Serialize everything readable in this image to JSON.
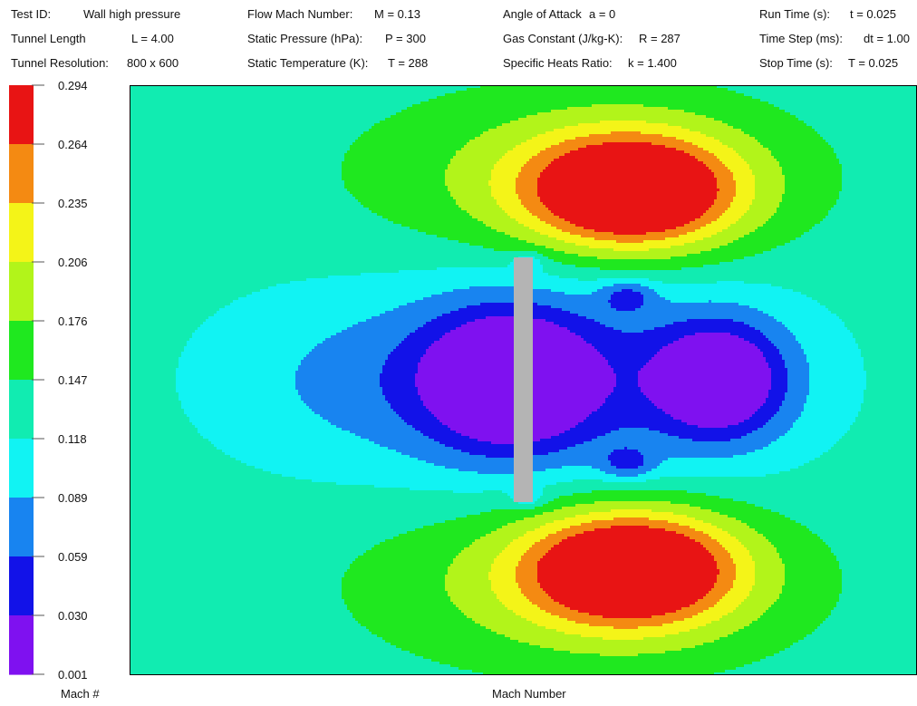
{
  "header": {
    "rows": [
      [
        {
          "label": "Test ID:",
          "value": "Wall high pressure"
        },
        {
          "label": "Flow Mach Number:",
          "value": "M = 0.13"
        },
        {
          "label": "Angle of Attack",
          "value": "a = 0"
        },
        {
          "label": "Run Time (s):",
          "value": "t = 0.025"
        }
      ],
      [
        {
          "label": "Tunnel Length",
          "value": "L = 4.00"
        },
        {
          "label": "Static Pressure (hPa):",
          "value": "P = 300"
        },
        {
          "label": "Gas Constant (J/kg-K):",
          "value": "R = 287"
        },
        {
          "label": "Time Step (ms):",
          "value": "dt = 1.00"
        }
      ],
      [
        {
          "label": "Tunnel Resolution:",
          "value": "800 x 600"
        },
        {
          "label": "Static Temperature (K):",
          "value": "T = 288"
        },
        {
          "label": "Specific Heats Ratio:",
          "value": "k = 1.400"
        },
        {
          "label": "Stop Time (s):",
          "value": "T = 0.025"
        }
      ]
    ]
  },
  "chart_data": {
    "type": "heatmap",
    "title": "",
    "xlabel": "Mach Number",
    "colorbar_label": "Mach #",
    "colorbar_ticks": [
      "0.294",
      "0.264",
      "0.235",
      "0.206",
      "0.176",
      "0.147",
      "0.118",
      "0.089",
      "0.059",
      "0.030",
      "0.001"
    ],
    "levels": [
      {
        "min": 0.001,
        "max": 0.03,
        "color": "#7f11f0"
      },
      {
        "min": 0.03,
        "max": 0.059,
        "color": "#1212e8"
      },
      {
        "min": 0.059,
        "max": 0.089,
        "color": "#1884f0"
      },
      {
        "min": 0.089,
        "max": 0.118,
        "color": "#11f3f3"
      },
      {
        "min": 0.118,
        "max": 0.147,
        "color": "#11ecb1"
      },
      {
        "min": 0.147,
        "max": 0.176,
        "color": "#1fe81f"
      },
      {
        "min": 0.176,
        "max": 0.206,
        "color": "#b2f41a"
      },
      {
        "min": 0.206,
        "max": 0.235,
        "color": "#f4f418"
      },
      {
        "min": 0.235,
        "max": 0.264,
        "color": "#f48a12"
      },
      {
        "min": 0.264,
        "max": 0.294,
        "color": "#e81414"
      }
    ],
    "freestream_level": 0.13,
    "obstacle": {
      "name": "wall",
      "color": "#b4b4b4"
    },
    "grid": false
  }
}
